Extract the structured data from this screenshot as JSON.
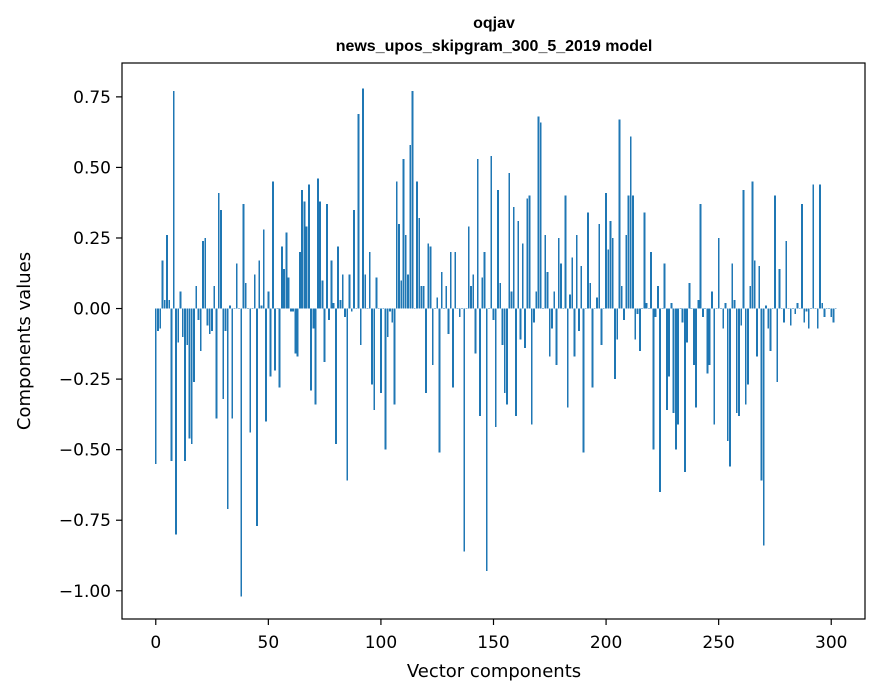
{
  "chart_data": {
    "type": "bar",
    "title_line1": "oqjav",
    "title_line2": "news_upos_skipgram_300_5_2019 model",
    "xlabel": "Vector components",
    "ylabel": "Components values",
    "xlim": [
      -15,
      315
    ],
    "ylim": [
      -1.1,
      0.87
    ],
    "xticks": [
      0,
      50,
      100,
      150,
      200,
      250,
      300
    ],
    "xtick_labels": [
      "0",
      "50",
      "100",
      "150",
      "200",
      "250",
      "300"
    ],
    "yticks": [
      -1.0,
      -0.75,
      -0.5,
      -0.25,
      0.0,
      0.25,
      0.5,
      0.75
    ],
    "ytick_labels": [
      "−1.00",
      "−0.75",
      "−0.50",
      "−0.25",
      "0.00",
      "0.25",
      "0.50",
      "0.75"
    ],
    "bar_color": "#1f77b4",
    "values": [
      -0.55,
      -0.08,
      -0.07,
      0.17,
      0.03,
      0.26,
      0.03,
      -0.54,
      0.77,
      -0.8,
      -0.12,
      0.06,
      -0.1,
      -0.54,
      -0.13,
      -0.46,
      -0.48,
      -0.26,
      0.08,
      -0.04,
      -0.15,
      0.24,
      0.25,
      -0.06,
      -0.09,
      -0.08,
      0.08,
      -0.39,
      0.41,
      0.35,
      -0.32,
      -0.08,
      -0.71,
      0.01,
      -0.39,
      0.0,
      0.16,
      0.0,
      -1.02,
      0.37,
      0.09,
      0.0,
      -0.44,
      0.0,
      0.12,
      -0.77,
      0.17,
      0.01,
      0.28,
      -0.4,
      0.06,
      -0.24,
      0.45,
      -0.22,
      0.0,
      -0.28,
      0.22,
      0.14,
      0.27,
      0.11,
      -0.01,
      -0.01,
      -0.16,
      -0.17,
      0.2,
      0.42,
      0.38,
      0.29,
      0.44,
      -0.29,
      -0.07,
      -0.34,
      0.46,
      0.38,
      0.1,
      -0.19,
      0.37,
      -0.04,
      0.17,
      0.02,
      -0.48,
      0.22,
      0.03,
      0.12,
      -0.03,
      -0.61,
      0.12,
      -0.01,
      0.35,
      0.0,
      0.69,
      -0.13,
      0.78,
      0.12,
      0.0,
      0.2,
      -0.27,
      -0.36,
      0.11,
      0.0,
      -0.3,
      0.0,
      -0.5,
      -0.1,
      -0.01,
      -0.05,
      -0.34,
      0.45,
      0.3,
      0.1,
      0.53,
      0.26,
      0.12,
      0.58,
      0.77,
      0.0,
      0.45,
      0.32,
      0.08,
      0.08,
      -0.3,
      0.23,
      0.22,
      -0.2,
      0.0,
      0.04,
      -0.51,
      0.13,
      0.0,
      0.08,
      -0.09,
      0.2,
      -0.28,
      0.2,
      0.0,
      -0.03,
      0.0,
      -0.86,
      0.0,
      0.29,
      0.08,
      0.12,
      -0.16,
      0.53,
      -0.38,
      0.11,
      0.2,
      -0.93,
      0.0,
      0.54,
      -0.04,
      -0.42,
      0.42,
      0.09,
      -0.13,
      -0.3,
      -0.34,
      0.48,
      0.06,
      0.36,
      -0.38,
      0.31,
      -0.11,
      0.23,
      -0.14,
      0.39,
      0.4,
      -0.41,
      -0.05,
      0.06,
      0.68,
      0.66,
      0.0,
      0.26,
      0.13,
      -0.17,
      -0.07,
      0.06,
      -0.2,
      0.25,
      0.16,
      0.0,
      0.4,
      -0.35,
      0.05,
      0.18,
      -0.17,
      0.26,
      -0.08,
      0.15,
      -0.51,
      0.0,
      0.34,
      0.09,
      -0.28,
      0.0,
      0.04,
      0.3,
      -0.13,
      0.0,
      0.41,
      0.21,
      0.31,
      0.25,
      -0.25,
      -0.11,
      0.67,
      0.08,
      -0.04,
      0.26,
      0.4,
      0.61,
      0.4,
      -0.11,
      -0.02,
      -0.15,
      0.0,
      0.34,
      0.02,
      0.0,
      0.2,
      -0.5,
      -0.03,
      0.08,
      -0.65,
      0.0,
      0.16,
      -0.36,
      -0.24,
      0.02,
      -0.37,
      -0.5,
      -0.41,
      0.0,
      -0.05,
      -0.58,
      -0.12,
      0.09,
      0.0,
      -0.2,
      -0.35,
      0.03,
      0.37,
      -0.03,
      0.0,
      -0.23,
      -0.2,
      0.06,
      -0.41,
      0.0,
      0.25,
      0.0,
      -0.07,
      0.02,
      -0.47,
      -0.56,
      0.16,
      0.03,
      -0.37,
      -0.38,
      -0.06,
      0.42,
      -0.34,
      -0.27,
      0.08,
      0.45,
      0.17,
      -0.17,
      0.15,
      -0.61,
      -0.84,
      0.01,
      -0.07,
      -0.15,
      0.0,
      0.4,
      -0.26,
      0.14,
      0.0,
      -0.05,
      0.24,
      0.0,
      -0.06,
      0.0,
      -0.02,
      0.02,
      0.0,
      0.37,
      -0.05,
      -0.01,
      -0.07,
      0.0,
      0.44,
      0.0,
      -0.07,
      0.44,
      0.02,
      -0.03,
      0.0,
      0.0,
      -0.03,
      -0.05,
      0.0
    ]
  }
}
